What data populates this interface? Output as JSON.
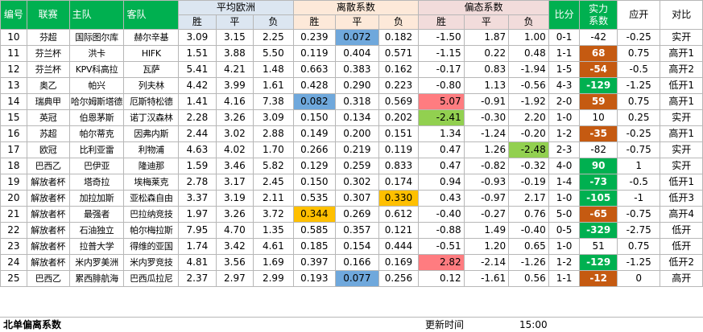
{
  "headers": {
    "no": "编号",
    "league": "联赛",
    "home": "主队",
    "away": "客队",
    "avg_euro": "平均欧洲",
    "dispersion": "离散系数",
    "skew": "偏态系数",
    "sub": {
      "win": "胜",
      "draw": "平",
      "loss": "负"
    },
    "score": "比分",
    "strength1": "实力",
    "strength2": "系数",
    "handicap": "应开",
    "compare": "对比"
  },
  "rows": [
    {
      "no": "10",
      "league": "芬超",
      "home": "国际图尔库",
      "away": "赫尔辛基",
      "euro": [
        "3.09",
        "3.15",
        "2.25"
      ],
      "disp": [
        "0.239",
        "0.072",
        "0.182"
      ],
      "skew": [
        "-1.50",
        "1.87",
        "1.00"
      ],
      "score": "0-1",
      "strength": "-42",
      "handicap": "-0.25",
      "compare": "实开",
      "hl": {
        "disp1": "blue"
      }
    },
    {
      "no": "11",
      "league": "芬兰杯",
      "home": "洪卡",
      "away": "HIFK",
      "euro": [
        "1.51",
        "3.88",
        "5.50"
      ],
      "disp": [
        "0.119",
        "0.404",
        "0.571"
      ],
      "skew": [
        "-1.15",
        "0.22",
        "0.48"
      ],
      "score": "1-1",
      "strength": "68",
      "handicap": "0.75",
      "compare": "高开1",
      "strength_color": "orange"
    },
    {
      "no": "12",
      "league": "芬兰杯",
      "home": "KPV科高拉",
      "away": "瓦萨",
      "euro": [
        "5.41",
        "4.21",
        "1.48"
      ],
      "disp": [
        "0.663",
        "0.383",
        "0.162"
      ],
      "skew": [
        "-0.17",
        "0.83",
        "-1.94"
      ],
      "score": "1-5",
      "strength": "-54",
      "handicap": "-0.5",
      "compare": "高开2",
      "strength_color": "orange"
    },
    {
      "no": "13",
      "league": "奥乙",
      "home": "帕兴",
      "away": "列夫林",
      "euro": [
        "4.42",
        "3.99",
        "1.61"
      ],
      "disp": [
        "0.428",
        "0.290",
        "0.223"
      ],
      "skew": [
        "-0.80",
        "1.13",
        "-0.56"
      ],
      "score": "4-3",
      "strength": "-129",
      "handicap": "-1.25",
      "compare": "低开1",
      "strength_color": "green"
    },
    {
      "no": "14",
      "league": "瑞典甲",
      "home": "哈尔姆斯塔德",
      "away": "厄斯特松德",
      "euro": [
        "1.41",
        "4.16",
        "7.38"
      ],
      "disp": [
        "0.082",
        "0.318",
        "0.569"
      ],
      "skew": [
        "5.07",
        "-0.91",
        "-1.92"
      ],
      "score": "2-0",
      "strength": "59",
      "handicap": "0.75",
      "compare": "高开1",
      "strength_color": "orange",
      "hl": {
        "disp0": "blue",
        "skew0": "red"
      }
    },
    {
      "no": "15",
      "league": "英冠",
      "home": "伯恩茅斯",
      "away": "诺丁汉森林",
      "euro": [
        "2.28",
        "3.26",
        "3.09"
      ],
      "disp": [
        "0.150",
        "0.134",
        "0.202"
      ],
      "skew": [
        "-2.41",
        "-0.30",
        "2.20"
      ],
      "score": "1-0",
      "strength": "10",
      "handicap": "0.25",
      "compare": "实开",
      "hl": {
        "skew0": "green"
      }
    },
    {
      "no": "16",
      "league": "苏超",
      "home": "帕尔蒂克",
      "away": "因弗内斯",
      "euro": [
        "2.44",
        "3.02",
        "2.88"
      ],
      "disp": [
        "0.149",
        "0.200",
        "0.151"
      ],
      "skew": [
        "1.34",
        "-1.24",
        "-0.20"
      ],
      "score": "1-2",
      "strength": "-35",
      "handicap": "-0.25",
      "compare": "高开1",
      "strength_color": "orange"
    },
    {
      "no": "17",
      "league": "欧冠",
      "home": "比利亚雷",
      "away": "利物浦",
      "euro": [
        "4.63",
        "4.02",
        "1.70"
      ],
      "disp": [
        "0.266",
        "0.219",
        "0.119"
      ],
      "skew": [
        "0.47",
        "1.26",
        "-2.48"
      ],
      "score": "2-3",
      "strength": "-82",
      "handicap": "-0.75",
      "compare": "实开",
      "hl": {
        "skew2": "green"
      }
    },
    {
      "no": "18",
      "league": "巴西乙",
      "home": "巴伊亚",
      "away": "隆迪那",
      "euro": [
        "1.59",
        "3.46",
        "5.82"
      ],
      "disp": [
        "0.129",
        "0.259",
        "0.833"
      ],
      "skew": [
        "0.47",
        "-0.82",
        "-0.32"
      ],
      "score": "4-0",
      "strength": "90",
      "handicap": "1",
      "compare": "实开",
      "strength_color": "green"
    },
    {
      "no": "19",
      "league": "解放者杯",
      "home": "塔奇拉",
      "away": "埃梅莱克",
      "euro": [
        "2.78",
        "3.17",
        "2.45"
      ],
      "disp": [
        "0.150",
        "0.302",
        "0.174"
      ],
      "skew": [
        "0.94",
        "-0.93",
        "-0.19"
      ],
      "score": "1-4",
      "strength": "-73",
      "handicap": "-0.5",
      "compare": "低开1",
      "strength_color": "green"
    },
    {
      "no": "20",
      "league": "解放者杯",
      "home": "加拉加斯",
      "away": "亚松森自由",
      "euro": [
        "3.37",
        "3.19",
        "2.11"
      ],
      "disp": [
        "0.535",
        "0.307",
        "0.330"
      ],
      "skew": [
        "0.43",
        "-0.97",
        "2.17"
      ],
      "score": "1-0",
      "strength": "-105",
      "handicap": "-1",
      "compare": "低开3",
      "strength_color": "green",
      "hl": {
        "disp2": "orange"
      }
    },
    {
      "no": "21",
      "league": "解放者杯",
      "home": "最强者",
      "away": "巴拉纳竞技",
      "euro": [
        "1.97",
        "3.26",
        "3.72"
      ],
      "disp": [
        "0.344",
        "0.269",
        "0.612"
      ],
      "skew": [
        "-0.40",
        "-0.27",
        "0.76"
      ],
      "score": "5-0",
      "strength": "-65",
      "handicap": "-0.75",
      "compare": "高开4",
      "strength_color": "orange",
      "hl": {
        "disp0": "orange"
      }
    },
    {
      "no": "22",
      "league": "解放者杯",
      "home": "石油独立",
      "away": "帕尔梅拉斯",
      "euro": [
        "7.95",
        "4.70",
        "1.35"
      ],
      "disp": [
        "0.585",
        "0.357",
        "0.121"
      ],
      "skew": [
        "-0.88",
        "1.49",
        "-0.40"
      ],
      "score": "0-5",
      "strength": "-329",
      "handicap": "-2.75",
      "compare": "低开",
      "strength_color": "green"
    },
    {
      "no": "23",
      "league": "解放者杯",
      "home": "拉普大学",
      "away": "得维的亚国",
      "euro": [
        "1.74",
        "3.42",
        "4.61"
      ],
      "disp": [
        "0.185",
        "0.154",
        "0.444"
      ],
      "skew": [
        "-0.51",
        "1.20",
        "0.65"
      ],
      "score": "1-0",
      "strength": "51",
      "handicap": "0.75",
      "compare": "低开"
    },
    {
      "no": "24",
      "league": "解放者杯",
      "home": "米内罗美洲",
      "away": "米内罗竞技",
      "euro": [
        "4.81",
        "3.56",
        "1.69"
      ],
      "disp": [
        "0.397",
        "0.166",
        "0.169"
      ],
      "skew": [
        "2.82",
        "-2.14",
        "-1.26"
      ],
      "score": "1-2",
      "strength": "-129",
      "handicap": "-1.25",
      "compare": "低开2",
      "strength_color": "green",
      "hl": {
        "skew0": "red"
      }
    },
    {
      "no": "25",
      "league": "巴西乙",
      "home": "累西腓航海",
      "away": "巴西瓜拉尼",
      "euro": [
        "2.37",
        "2.97",
        "2.99"
      ],
      "disp": [
        "0.193",
        "0.077",
        "0.256"
      ],
      "skew": [
        "0.12",
        "-1.61",
        "0.56"
      ],
      "score": "1-1",
      "strength": "-12",
      "handicap": "0",
      "compare": "高开",
      "strength_color": "orange",
      "hl": {
        "disp1": "blue"
      }
    }
  ],
  "footer": {
    "title": "北单偏离系数",
    "update_label": "更新时间",
    "time": "15:00"
  }
}
